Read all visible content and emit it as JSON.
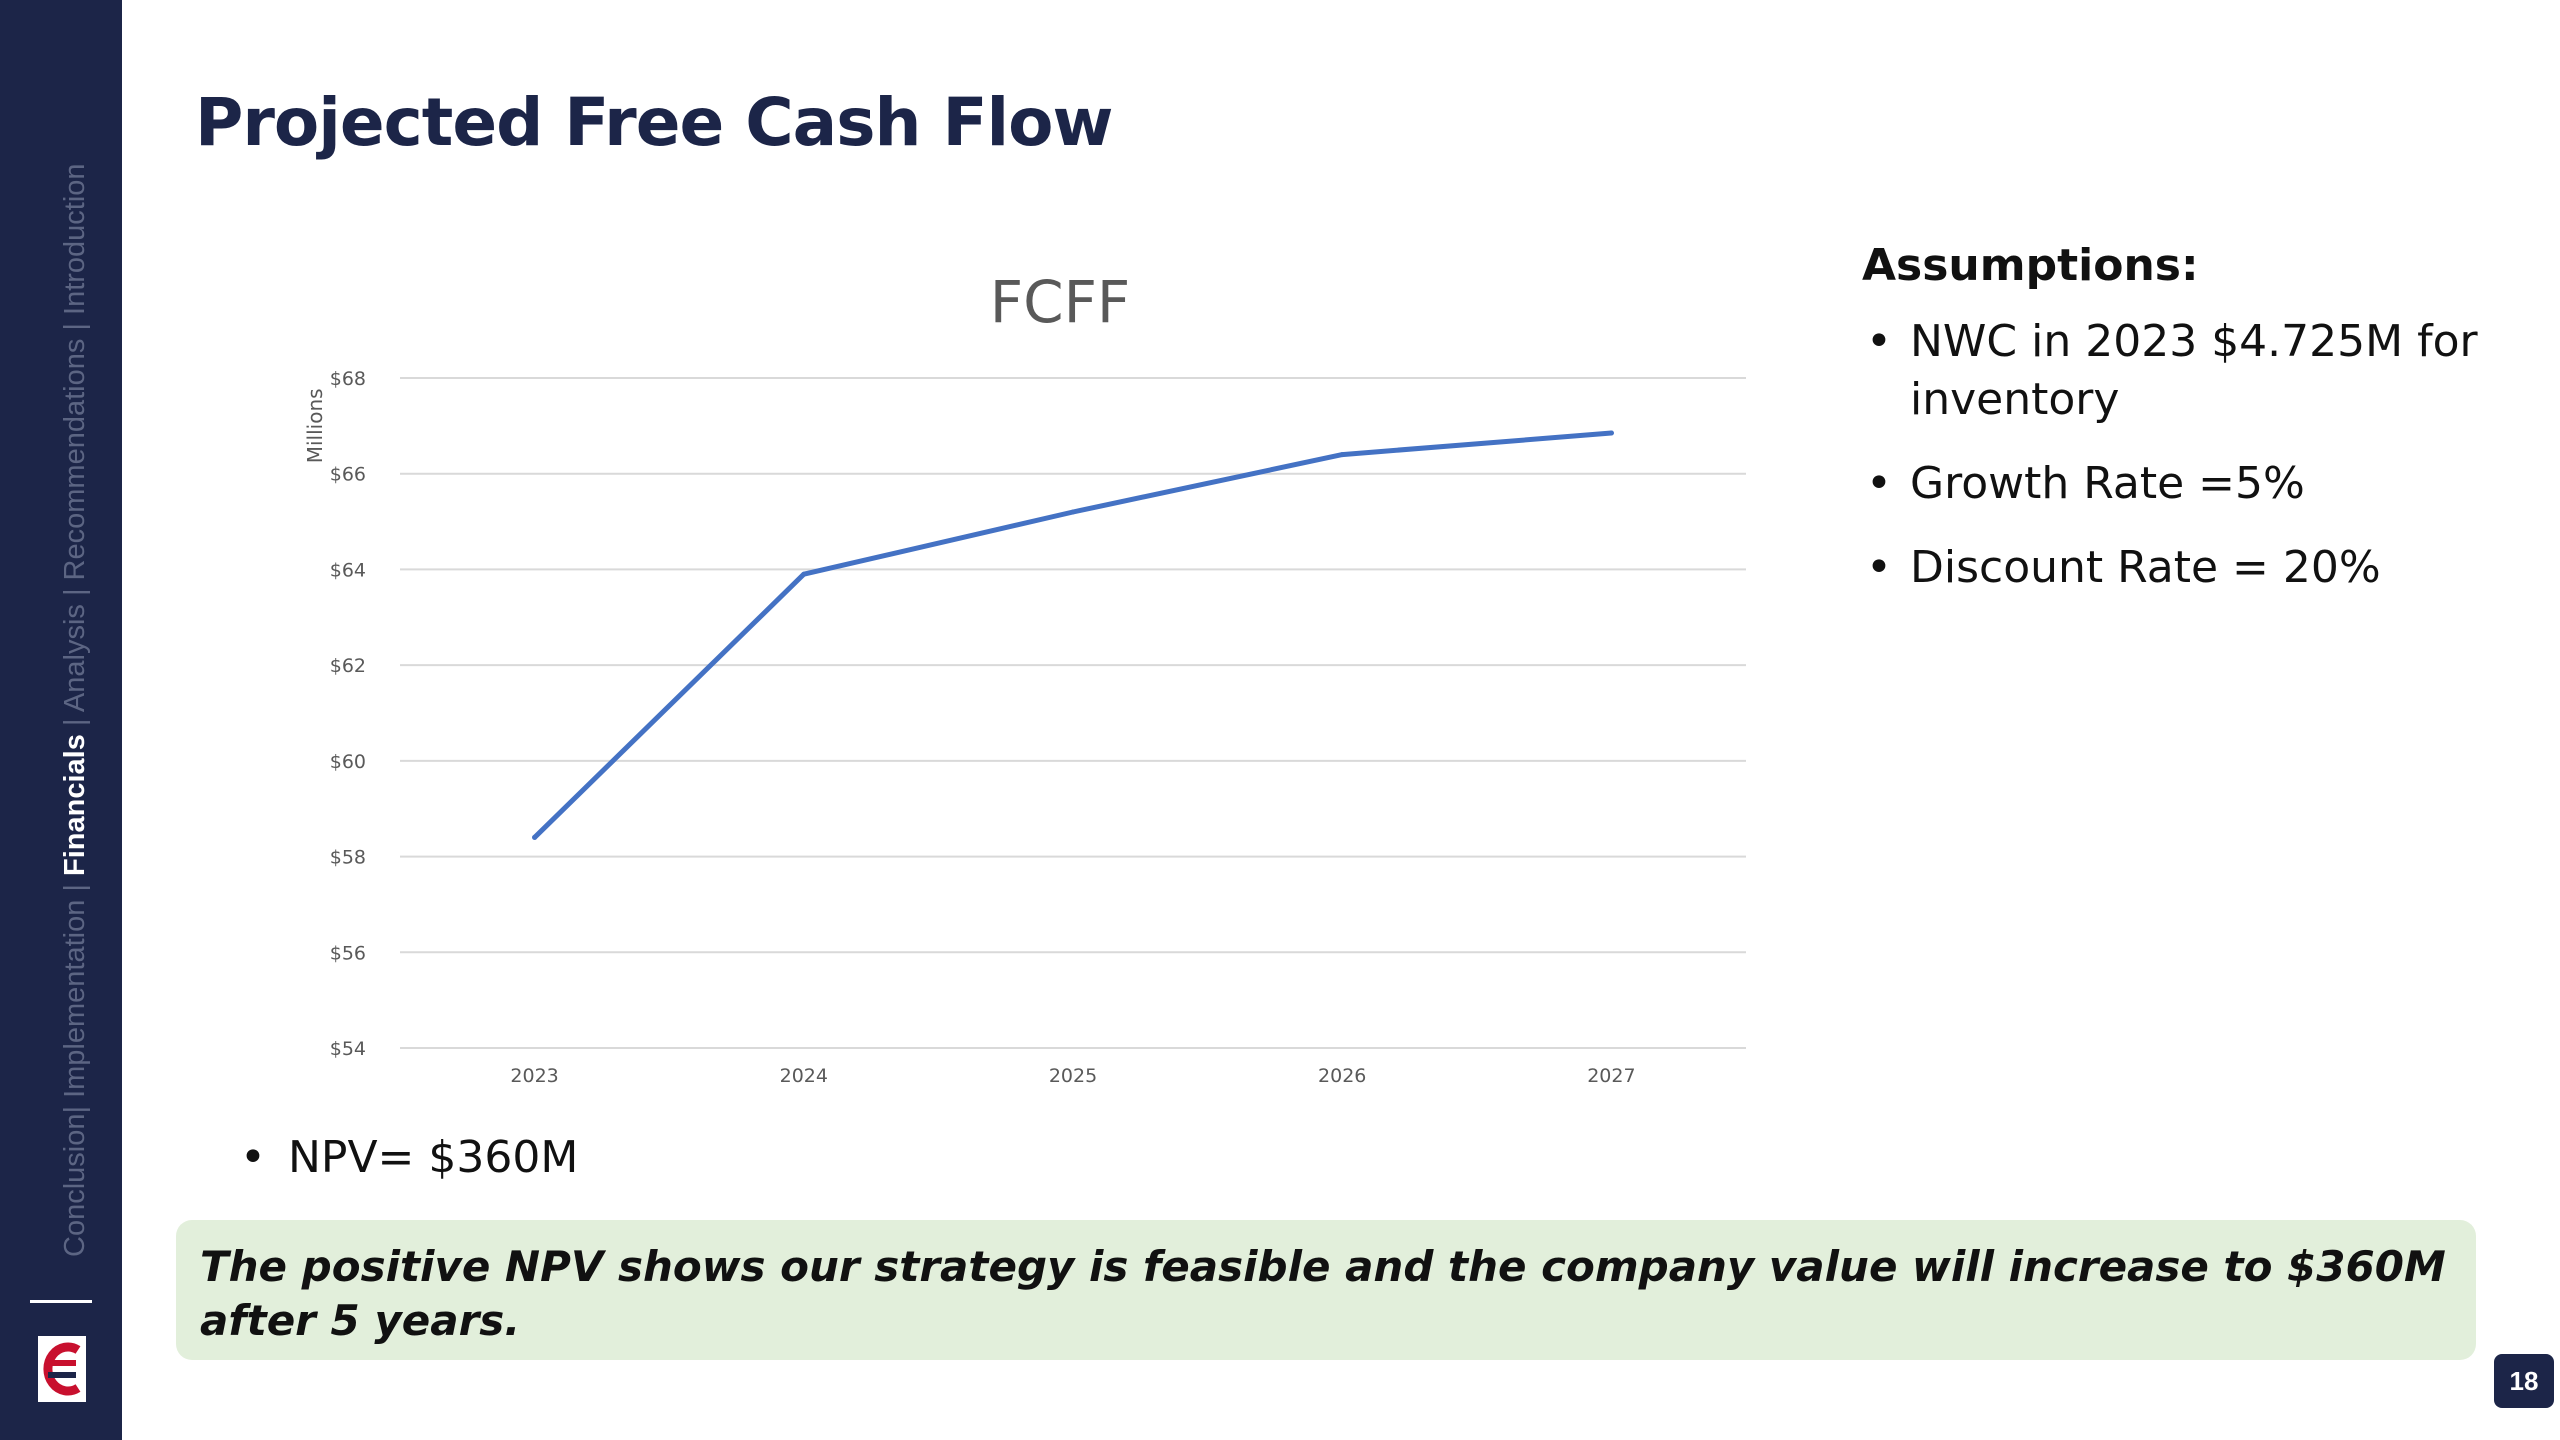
{
  "slide": {
    "title": "Projected Free Cash Flow",
    "page_number": "18",
    "npv": "NPV= $360M",
    "conclusion": "The positive NPV shows our strategy is feasible and the company value will increase to $360M after 5 years."
  },
  "sidebar": {
    "nav": [
      {
        "label": "Conclusion",
        "active": false
      },
      {
        "label": "| ",
        "active": false
      },
      {
        "label": "Implementation",
        "active": false
      },
      {
        "label": " | ",
        "active": false
      },
      {
        "label": "Financials",
        "active": true
      },
      {
        "label": " | ",
        "active": false
      },
      {
        "label": "Analysis",
        "active": false
      },
      {
        "label": " | ",
        "active": false
      },
      {
        "label": "Recommendations",
        "active": false
      },
      {
        "label": " | ",
        "active": false
      },
      {
        "label": "Introduction",
        "active": false
      }
    ]
  },
  "assumptions": {
    "title": "Assumptions:",
    "items": [
      "NWC in 2023 $4.725M for inventory",
      "Growth Rate =5%",
      "Discount Rate = 20%"
    ]
  },
  "colors": {
    "navy": "#1c2548",
    "line": "#4472c4",
    "highlight_box": "#e2efdb"
  },
  "chart_data": {
    "type": "line",
    "title": "FCFF",
    "xlabel": "",
    "ylabel": "Millions",
    "categories": [
      "2023",
      "2024",
      "2025",
      "2026",
      "2027"
    ],
    "series": [
      {
        "values": [
          58.4,
          63.9,
          65.2,
          66.4,
          66.85
        ]
      }
    ],
    "ylim": [
      54,
      68
    ],
    "yticks": [
      54,
      56,
      58,
      60,
      62,
      64,
      66,
      68
    ],
    "ytick_labels": [
      "$54",
      "$56",
      "$58",
      "$60",
      "$62",
      "$64",
      "$66",
      "$68"
    ],
    "grid": true,
    "legend": "none"
  }
}
